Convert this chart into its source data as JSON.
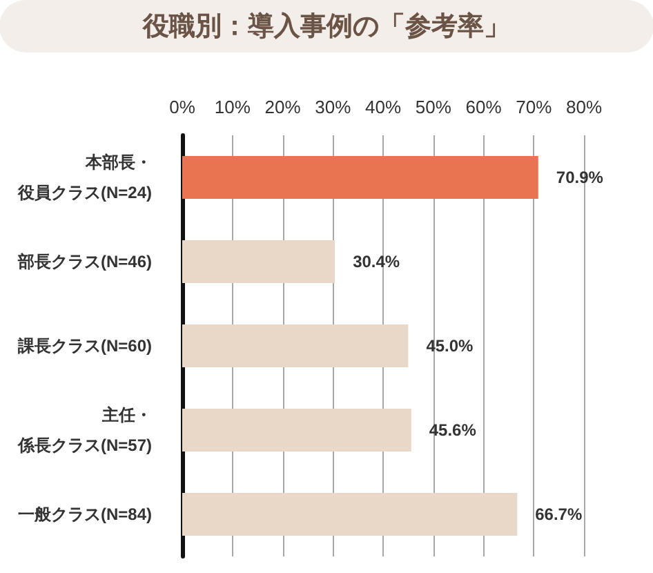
{
  "chart_data": {
    "type": "bar",
    "orientation": "horizontal",
    "title": "役職別：導入事例の「参考率」",
    "categories": [
      "本部長・役員クラス(N=24)",
      "部長クラス(N=46)",
      "課長クラス(N=60)",
      "主任・係長クラス(N=57)",
      "一般クラス(N=84)"
    ],
    "values": [
      70.9,
      30.4,
      45.0,
      45.6,
      66.7
    ],
    "colors": [
      "#e97452",
      "#e9d7c7",
      "#e9d7c7",
      "#e9d7c7",
      "#e9d7c7"
    ],
    "value_labels": [
      "70.9%",
      "30.4%",
      "45.0%",
      "45.6%",
      "66.7%"
    ],
    "xlim": [
      0,
      80
    ],
    "xticks": [
      {
        "value": 0,
        "label": "0%"
      },
      {
        "value": 10,
        "label": "10%"
      },
      {
        "value": 20,
        "label": "20%"
      },
      {
        "value": 30,
        "label": "30%"
      },
      {
        "value": 40,
        "label": "40%"
      },
      {
        "value": 50,
        "label": "50%"
      },
      {
        "value": 60,
        "label": "60%"
      },
      {
        "value": 70,
        "label": "70%"
      },
      {
        "value": 80,
        "label": "80%"
      }
    ],
    "grid": "x"
  }
}
